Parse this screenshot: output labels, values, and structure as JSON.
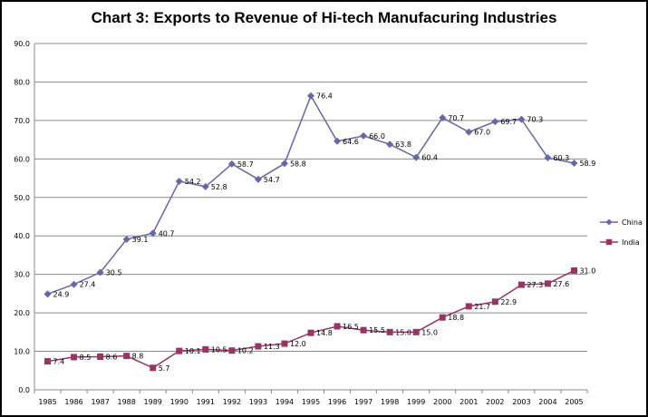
{
  "chart_data": {
    "type": "line",
    "title": "Chart 3: Exports to Revenue of Hi-tech Manufacuring Industries",
    "xlabel": "",
    "ylabel": "",
    "ylim": [
      0,
      90
    ],
    "yticks": [
      "0.0",
      "10.0",
      "20.0",
      "30.0",
      "40.0",
      "50.0",
      "60.0",
      "70.0",
      "80.0",
      "90.0"
    ],
    "categories": [
      "1985",
      "1986",
      "1987",
      "1988",
      "1989",
      "1990",
      "1991",
      "1992",
      "1993",
      "1994",
      "1995",
      "1996",
      "1997",
      "1998",
      "1999",
      "2000",
      "2001",
      "2002",
      "2003",
      "2004",
      "2005"
    ],
    "grid": "horizontal",
    "legend_position": "right",
    "series": [
      {
        "name": "China",
        "color": "#6666aa",
        "marker": "diamond",
        "values": [
          24.9,
          27.4,
          30.5,
          39.1,
          40.7,
          54.2,
          52.8,
          58.7,
          54.7,
          58.8,
          76.4,
          64.6,
          66.0,
          63.8,
          60.4,
          70.7,
          67.0,
          69.7,
          70.3,
          60.3,
          58.9
        ],
        "labels": [
          "24.9",
          "27.4",
          "30.5",
          "39.1",
          "40.7",
          "54.2",
          "52.8",
          "58.7",
          "54.7",
          "58.8",
          "76.4",
          "64.6",
          "66.0",
          "63.8",
          "60.4",
          "70.7",
          "67.0",
          "69.7",
          "70.3",
          "60.3",
          "58.9"
        ]
      },
      {
        "name": "India",
        "color": "#993366",
        "marker": "square",
        "values": [
          7.4,
          8.5,
          8.6,
          8.8,
          5.7,
          10.1,
          10.5,
          10.2,
          11.3,
          12.0,
          14.8,
          16.5,
          15.5,
          15.0,
          15.0,
          18.8,
          21.7,
          22.9,
          27.3,
          27.6,
          31.0
        ],
        "labels": [
          "7.4",
          "8.5",
          "8.6",
          "8.8",
          "5.7",
          "10.1",
          "10.5",
          "10.2",
          "11.3",
          "12.0",
          "14.8",
          "16.5",
          "15.5",
          "15.0",
          "15.0",
          "18.8",
          "21.7",
          "22.9",
          "27.3",
          "27.6",
          "31.0"
        ]
      }
    ]
  }
}
